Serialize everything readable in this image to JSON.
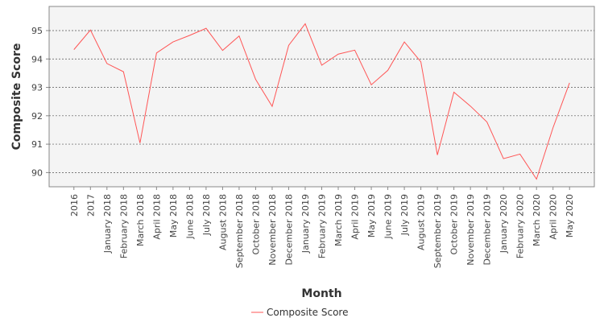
{
  "chart_data": {
    "type": "line",
    "title": "",
    "xlabel": "Month",
    "ylabel": "Composite Score",
    "categories": [
      "2016",
      "2017",
      "January 2018",
      "February 2018",
      "March 2018",
      "April 2018",
      "May 2018",
      "June 2018",
      "July 2018",
      "August 2018",
      "September 2018",
      "October 2018",
      "November 2018",
      "December 2018",
      "January 2019",
      "February 2019",
      "March 2019",
      "April 2019",
      "May 2019",
      "June 2019",
      "July 2019",
      "August 2019",
      "September 2019",
      "October 2019",
      "November 2019",
      "December 2019",
      "January 2020",
      "February 2020",
      "March 2020",
      "April 2020",
      "May 2020"
    ],
    "series": [
      {
        "name": "Composite Score",
        "color": "#ff5555",
        "values": [
          94.33,
          95.02,
          93.84,
          93.55,
          91.04,
          94.21,
          94.6,
          94.83,
          95.08,
          94.3,
          94.81,
          93.28,
          92.33,
          94.48,
          95.24,
          93.78,
          94.17,
          94.31,
          93.09,
          93.6,
          94.6,
          93.9,
          90.62,
          92.83,
          92.34,
          91.78,
          90.49,
          90.65,
          89.77,
          91.58,
          93.16
        ]
      }
    ],
    "yticks": [
      90,
      91,
      92,
      93,
      94,
      95
    ],
    "ylim": [
      89.5,
      95.85
    ],
    "grid": true,
    "legend_position": "bottom",
    "plot_background": "#f4f4f4",
    "grid_color": "#555555"
  }
}
